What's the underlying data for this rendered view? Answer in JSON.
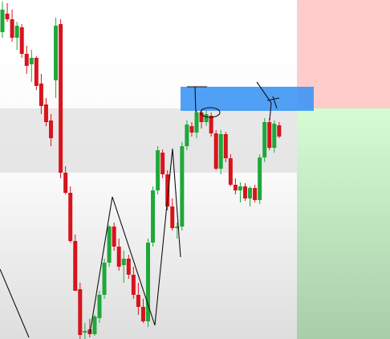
{
  "chart_data": {
    "type": "candlestick",
    "up_color": "#1ea83a",
    "down_color": "#d7141c",
    "ylim": [
      0,
      422
    ],
    "open": [
      382,
      405,
      398,
      375,
      388,
      355,
      342,
      350,
      318,
      292,
      272,
      322,
      392,
      207,
      182,
      122,
      62,
      8,
      12,
      6,
      26,
      55,
      95,
      140,
      115,
      92,
      100,
      80,
      55,
      40,
      22,
      120,
      185,
      232,
      205,
      165,
      138,
      140,
      240,
      265,
      257,
      282,
      270,
      278,
      256,
      212,
      255,
      225,
      192,
      185,
      190,
      175,
      188,
      173,
      226,
      270,
      238,
      266
    ],
    "high": [
      420,
      418,
      410,
      395,
      392,
      365,
      360,
      352,
      330,
      300,
      280,
      400,
      398,
      215,
      190,
      130,
      70,
      20,
      25,
      30,
      60,
      100,
      142,
      145,
      125,
      110,
      105,
      90,
      70,
      50,
      125,
      190,
      240,
      236,
      210,
      175,
      145,
      245,
      272,
      270,
      285,
      288,
      285,
      282,
      260,
      260,
      258,
      230,
      200,
      195,
      194,
      190,
      192,
      230,
      275,
      275,
      272,
      270
    ],
    "low": [
      375,
      395,
      370,
      360,
      350,
      330,
      320,
      310,
      280,
      265,
      240,
      300,
      200,
      180,
      120,
      60,
      0,
      0,
      2,
      4,
      20,
      50,
      90,
      110,
      85,
      70,
      75,
      50,
      30,
      20,
      15,
      115,
      180,
      200,
      160,
      135,
      125,
      135,
      235,
      252,
      250,
      262,
      265,
      252,
      210,
      205,
      220,
      190,
      180,
      170,
      172,
      165,
      170,
      168,
      220,
      235,
      232,
      250
    ],
    "close": [
      410,
      398,
      375,
      390,
      355,
      340,
      350,
      315,
      290,
      270,
      250,
      390,
      207,
      182,
      122,
      60,
      5,
      10,
      6,
      28,
      55,
      95,
      140,
      115,
      90,
      100,
      80,
      55,
      40,
      22,
      120,
      185,
      235,
      205,
      165,
      138,
      140,
      240,
      267,
      257,
      282,
      270,
      280,
      256,
      212,
      255,
      225,
      192,
      185,
      190,
      175,
      188,
      173,
      226,
      270,
      238,
      268,
      252
    ]
  }
}
